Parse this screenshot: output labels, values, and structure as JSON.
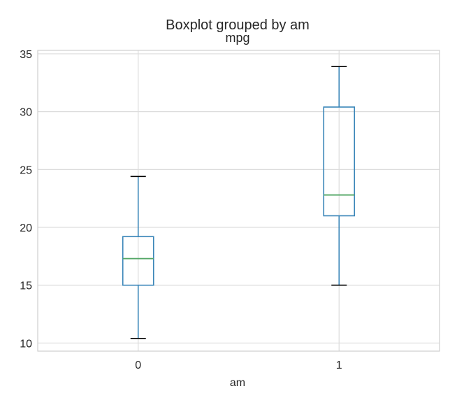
{
  "chart_data": {
    "type": "box",
    "suptitle": "Boxplot grouped by am",
    "title": "mpg",
    "xlabel": "am",
    "ylabel": "",
    "categories": [
      "0",
      "1"
    ],
    "ylim": [
      9.3,
      35.3
    ],
    "yticks": [
      10,
      15,
      20,
      25,
      30,
      35
    ],
    "grid": true,
    "boxes": [
      {
        "category": "0",
        "whisker_low": 10.4,
        "q1": 15.0,
        "median": 17.3,
        "q3": 19.2,
        "whisker_high": 24.4
      },
      {
        "category": "1",
        "whisker_low": 15.0,
        "q1": 21.0,
        "median": 22.8,
        "q3": 30.4,
        "whisker_high": 33.9
      }
    ],
    "colors": {
      "box": "#3a86b8",
      "median": "#55a868",
      "caps": "#000000",
      "grid": "#dcdcdc",
      "frame": "#cfcfcf"
    }
  }
}
